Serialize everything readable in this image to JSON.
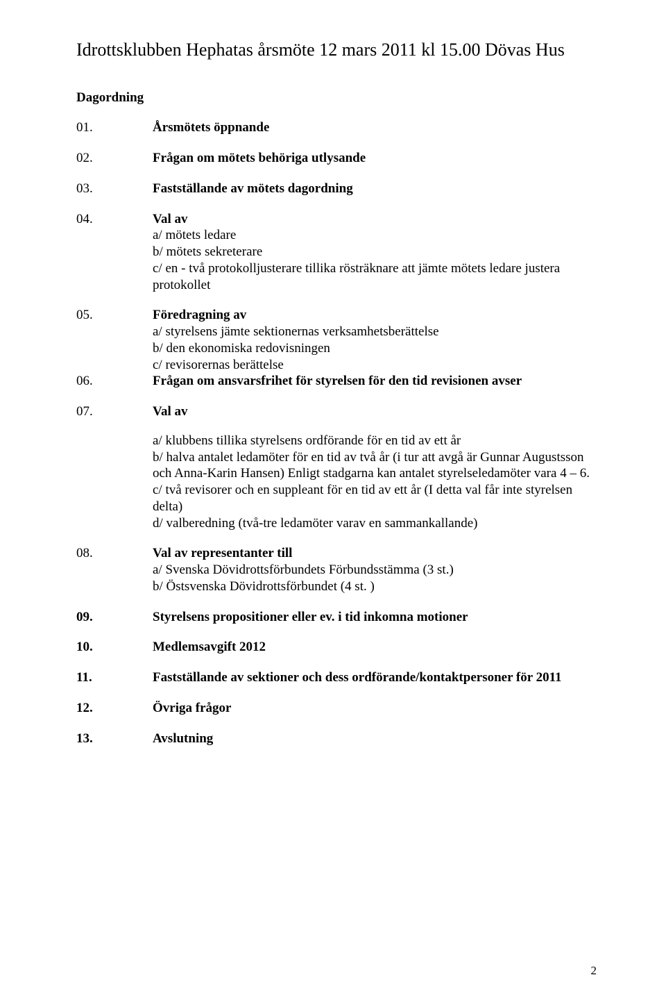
{
  "title": "Idrottsklubben Hephatas årsmöte 12 mars 2011 kl 15.00 Dövas Hus",
  "subheading": "Dagordning",
  "items": {
    "i01": {
      "num": "01.",
      "text": "Årsmötets öppnande"
    },
    "i02": {
      "num": "02.",
      "text": "Frågan om mötets behöriga utlysande"
    },
    "i03": {
      "num": "03.",
      "text": "Fastställande av mötets dagordning"
    },
    "i04": {
      "num": "04.",
      "head": "Val av",
      "a": "a/ mötets ledare",
      "b": "b/ mötets sekreterare",
      "c": "c/ en - två protokolljusterare tillika rösträknare att jämte mötets ledare justera protokollet"
    },
    "i05": {
      "num": "05.",
      "head": "Föredragning av",
      "a": "a/ styrelsens jämte sektionernas verksamhetsberättelse",
      "b": "b/ den ekonomiska redovisningen",
      "c": "c/ revisorernas berättelse"
    },
    "i06": {
      "num": "06.",
      "text": "Frågan om ansvarsfrihet för styrelsen för den tid revisionen avser"
    },
    "i07": {
      "num": "07.",
      "head": "Val av",
      "a": "a/ klubbens tillika styrelsens ordförande för en tid av ett år",
      "b": "b/ halva antalet ledamöter för en tid av två år (i tur att avgå är Gunnar Augustsson och Anna-Karin Hansen) Enligt stadgarna kan antalet styrelseledamöter vara 4 – 6.",
      "c": "c/ två revisorer och en suppleant för en tid av ett år (I detta val får inte styrelsen delta)",
      "d": "d/ valberedning (två-tre ledamöter varav en sammankallande)"
    },
    "i08": {
      "num": "08.",
      "head": "Val av representanter till",
      "a": "a/ Svenska Dövidrottsförbundets Förbundsstämma (3 st.)",
      "b": "b/ Östsvenska Dövidrottsförbundet (4 st. )"
    },
    "i09": {
      "num": "09.",
      "text": "Styrelsens propositioner eller ev. i tid inkomna motioner"
    },
    "i10": {
      "num": "10.",
      "text": "Medlemsavgift 2012"
    },
    "i11": {
      "num": "11.",
      "text": "Fastställande av sektioner och dess ordförande/kontaktpersoner för 2011"
    },
    "i12": {
      "num": "12.",
      "text": " Övriga frågor"
    },
    "i13": {
      "num": "13.",
      "text": "Avslutning"
    }
  },
  "page_number": "2"
}
